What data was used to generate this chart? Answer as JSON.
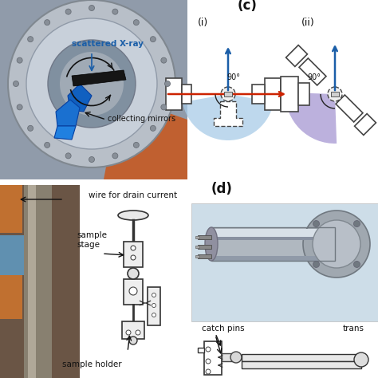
{
  "bg_color": "#ffffff",
  "panel_c_label": "(c)",
  "panel_d_label": "(d)",
  "sub_i_label": "(i)",
  "sub_ii_label": "(ii)",
  "label_scattered": "scattered X-ray",
  "label_mirrors": "collecting mirrors",
  "label_wire": "wire for drain current",
  "label_sample_stage": "sample\nstage",
  "label_sample_holder": "sample holder",
  "label_catch_pins": "catch pins",
  "label_trans": "trans",
  "label_90_i": "90°",
  "label_90_ii": "90°",
  "blue_arrow_color": "#1a5ea8",
  "red_arrow_color": "#cc2200",
  "fan_color_i": "#a8cce8",
  "fan_color_ii": "#9988cc",
  "text_color": "#111111",
  "label_color_blue": "#1a5ea8",
  "sketch_line_color": "#444444"
}
